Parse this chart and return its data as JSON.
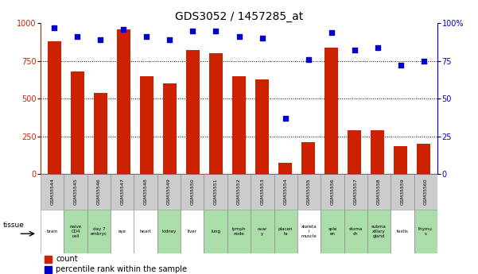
{
  "title": "GDS3052 / 1457285_at",
  "samples": [
    "GSM35544",
    "GSM35545",
    "GSM35546",
    "GSM35547",
    "GSM35548",
    "GSM35549",
    "GSM35550",
    "GSM35551",
    "GSM35552",
    "GSM35553",
    "GSM35554",
    "GSM35555",
    "GSM35556",
    "GSM35557",
    "GSM35558",
    "GSM35559",
    "GSM35560"
  ],
  "tissues": [
    "brain",
    "naive\nCD4\ncell",
    "day 7\nembryc",
    "eye",
    "heart",
    "kidney",
    "liver",
    "lung",
    "lymph\nnode",
    "ovar\ny",
    "placen\nta",
    "skeleta\nl\nmuscle",
    "sple\nen",
    "stoma\nch",
    "subma\nxillary\ngland",
    "testis",
    "thymu\ns"
  ],
  "counts": [
    880,
    680,
    540,
    960,
    650,
    600,
    820,
    800,
    650,
    630,
    75,
    210,
    840,
    290,
    290,
    185,
    200
  ],
  "percentiles": [
    97,
    91,
    89,
    96,
    91,
    89,
    95,
    95,
    91,
    90,
    37,
    76,
    94,
    82,
    84,
    72,
    75
  ],
  "bar_color": "#cc2200",
  "dot_color": "#0000cc",
  "ylim_left": [
    0,
    1000
  ],
  "ylim_right": [
    0,
    100
  ],
  "yticks_left": [
    0,
    250,
    500,
    750,
    1000
  ],
  "yticks_right": [
    0,
    25,
    50,
    75,
    100
  ],
  "tissue_green_indices": [
    1,
    2,
    5,
    7,
    8,
    9,
    10,
    12,
    13,
    14,
    16
  ],
  "bg_color": "#ffffff",
  "cell_bg_gray": "#cccccc",
  "cell_bg_green": "#aaddaa",
  "cell_bg_white": "#ffffff"
}
